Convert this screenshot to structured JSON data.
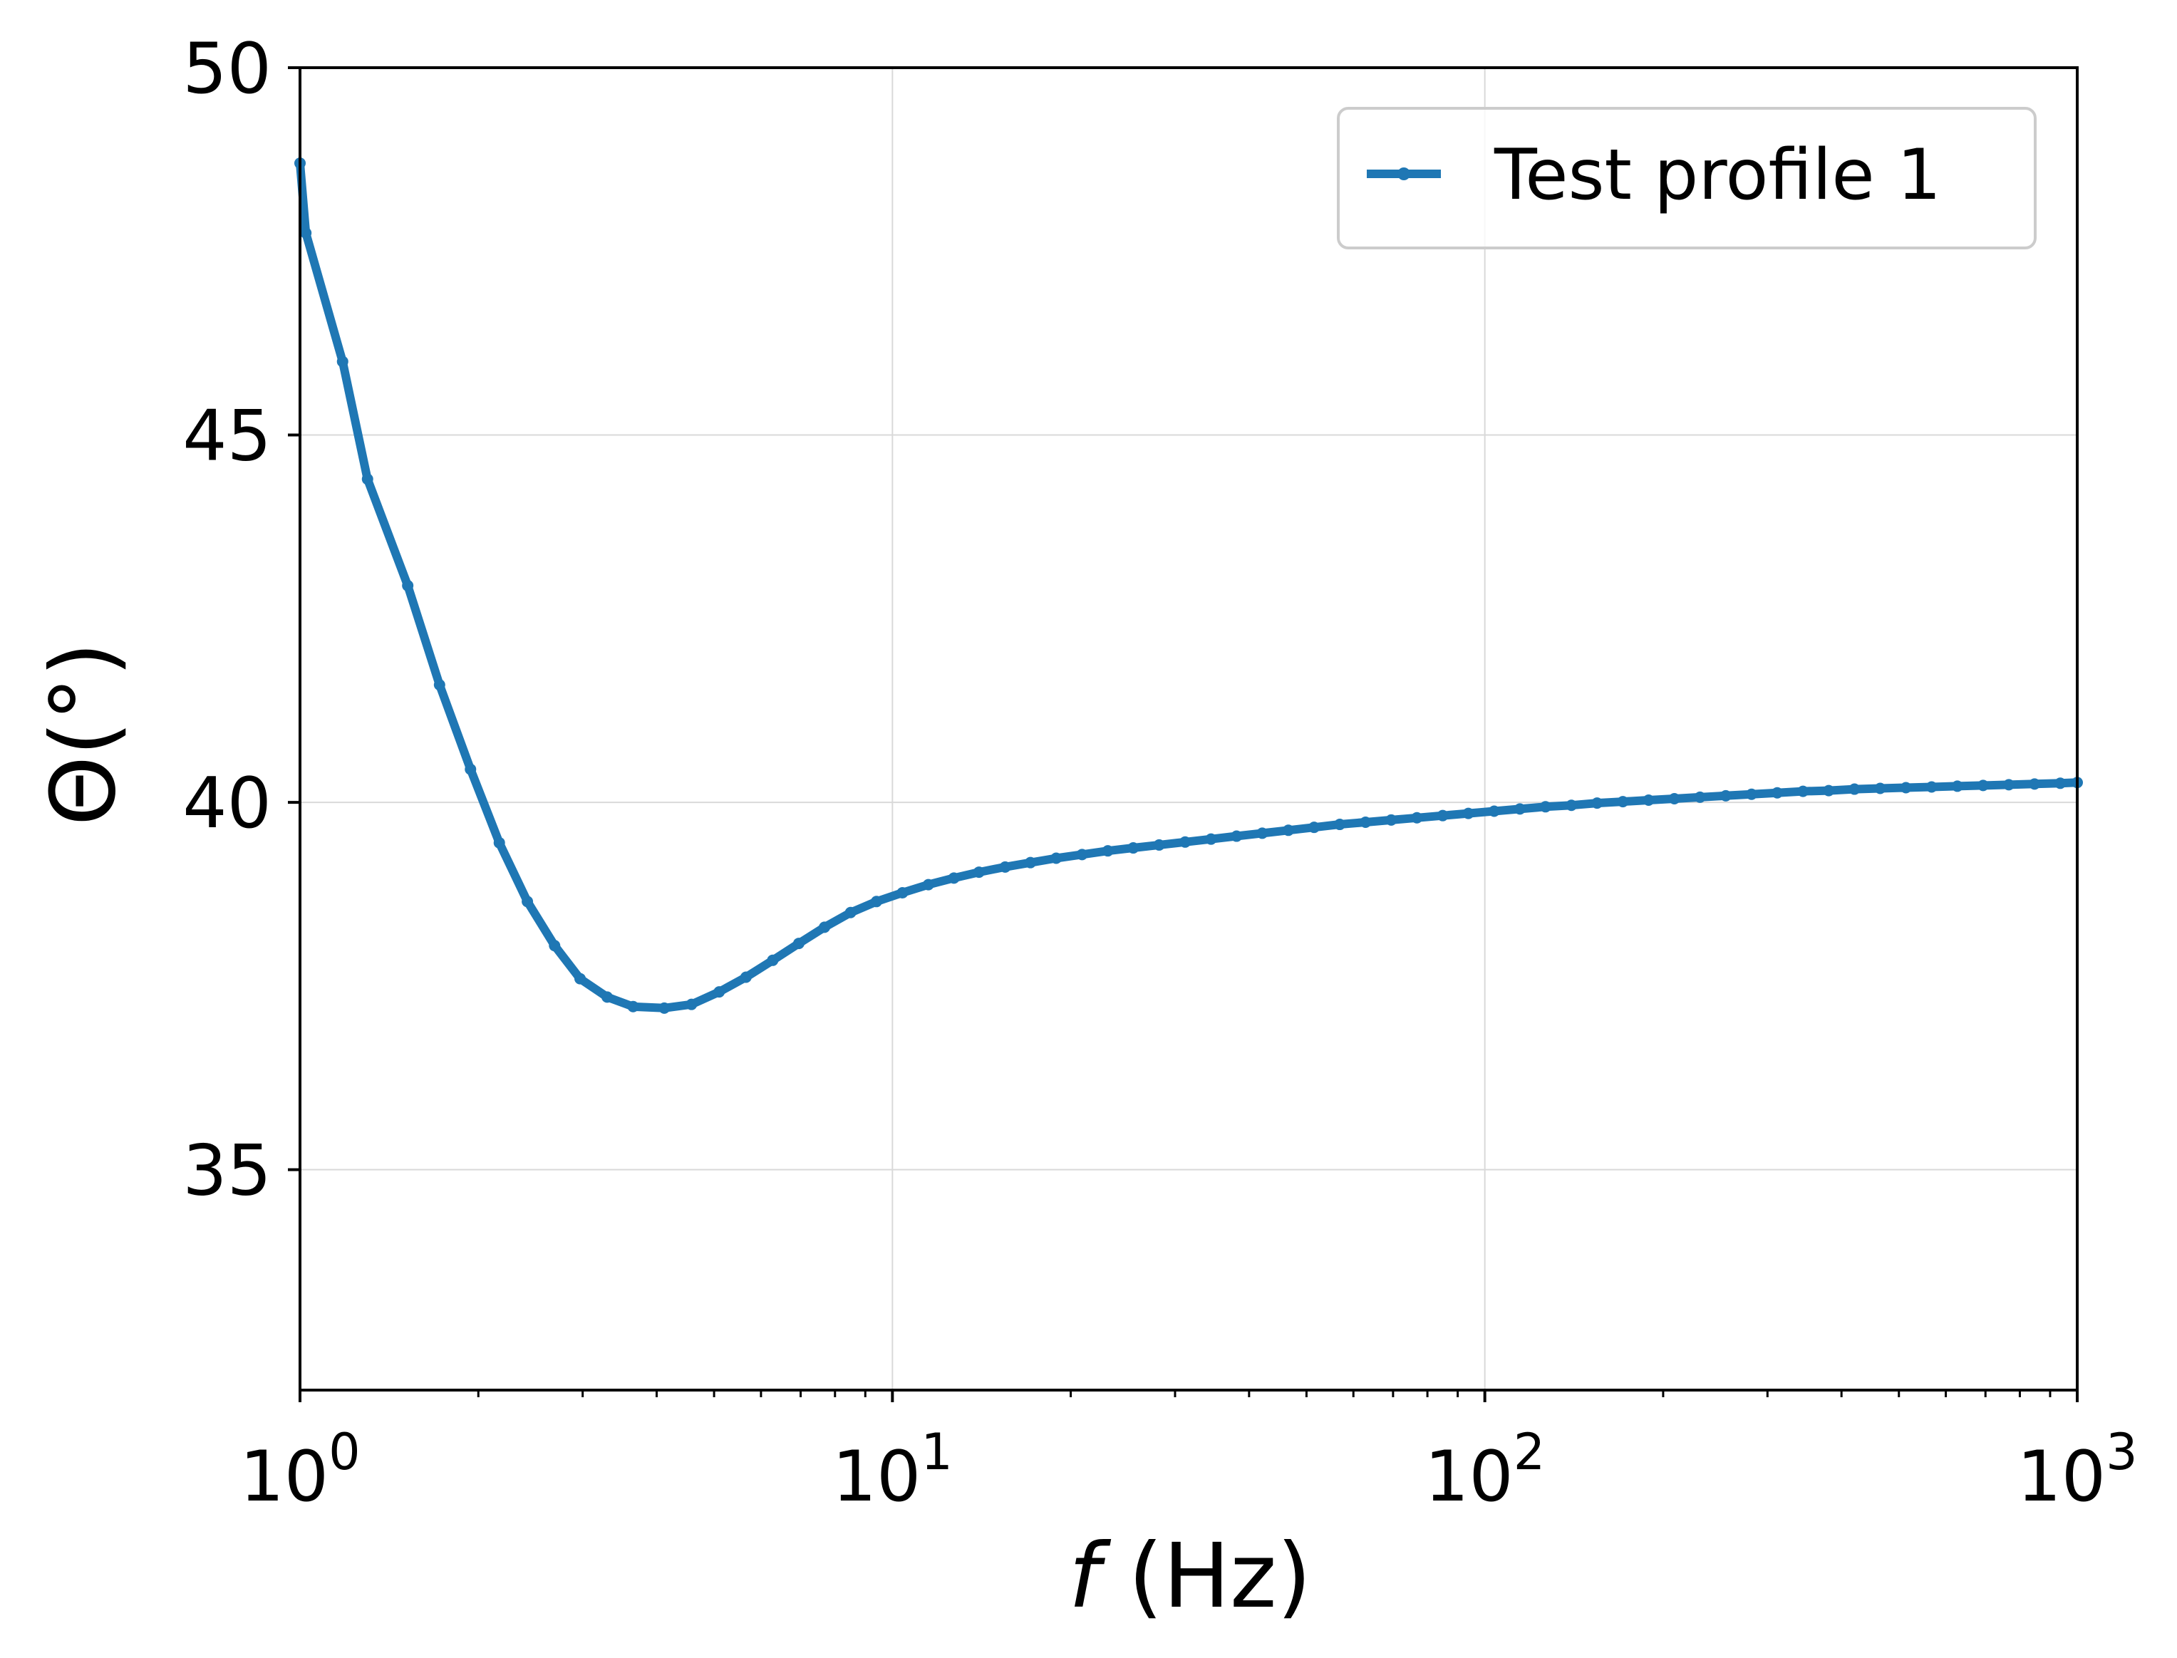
{
  "chart_data": {
    "type": "line",
    "title": "",
    "xlabel": "f (Hz)",
    "xlabel_parts": {
      "symbol": "f",
      "unit": "(Hz)"
    },
    "ylabel": "Θ(°)",
    "xscale": "log",
    "xlim": [
      1,
      1000
    ],
    "ylim": [
      32,
      50
    ],
    "grid": true,
    "legend_position": "top-right",
    "x_ticks": [
      {
        "base": "10",
        "exp": "0",
        "value": 1
      },
      {
        "base": "10",
        "exp": "1",
        "value": 10
      },
      {
        "base": "10",
        "exp": "2",
        "value": 100
      },
      {
        "base": "10",
        "exp": "3",
        "value": 1000
      }
    ],
    "y_ticks": [
      {
        "label": "35",
        "value": 35
      },
      {
        "label": "40",
        "value": 40
      },
      {
        "label": "45",
        "value": 45
      },
      {
        "label": "50",
        "value": 50
      }
    ],
    "series": [
      {
        "name": "Test profile 1",
        "color": "#1f77b4",
        "marker": "dot",
        "x": [
          1.0,
          1.023,
          1.18,
          1.3,
          1.52,
          1.72,
          1.94,
          2.17,
          2.42,
          2.69,
          2.97,
          3.3,
          3.65,
          4.12,
          4.58,
          5.1,
          5.66,
          6.28,
          6.95,
          7.68,
          8.5,
          9.4,
          10.4,
          11.5,
          12.7,
          14.0,
          15.5,
          17.1,
          18.9,
          20.9,
          23.1,
          25.5,
          28.2,
          31.2,
          34.5,
          38.1,
          42.1,
          46.6,
          51.5,
          56.9,
          62.9,
          69.5,
          76.8,
          84.9,
          93.8,
          103.7,
          114.6,
          126.6,
          140.0,
          154.7,
          171.0,
          189.0,
          208.9,
          230.8,
          255.1,
          282.0,
          311.6,
          344.4,
          380.6,
          420.7,
          464.9,
          513.8,
          567.8,
          627.5,
          693.6,
          766.5,
          847.1,
          936.2,
          1000.0
        ],
        "y": [
          48.7,
          47.75,
          46.0,
          44.4,
          42.95,
          41.6,
          40.45,
          39.45,
          38.65,
          38.05,
          37.6,
          37.35,
          37.22,
          37.2,
          37.25,
          37.42,
          37.62,
          37.85,
          38.08,
          38.3,
          38.5,
          38.65,
          38.77,
          38.88,
          38.97,
          39.05,
          39.12,
          39.18,
          39.24,
          39.29,
          39.34,
          39.38,
          39.42,
          39.46,
          39.5,
          39.54,
          39.58,
          39.62,
          39.66,
          39.7,
          39.73,
          39.76,
          39.79,
          39.82,
          39.85,
          39.88,
          39.91,
          39.94,
          39.96,
          39.99,
          40.01,
          40.03,
          40.05,
          40.07,
          40.09,
          40.11,
          40.13,
          40.15,
          40.16,
          40.18,
          40.19,
          40.2,
          40.21,
          40.22,
          40.23,
          40.24,
          40.25,
          40.26,
          40.27
        ]
      }
    ]
  }
}
